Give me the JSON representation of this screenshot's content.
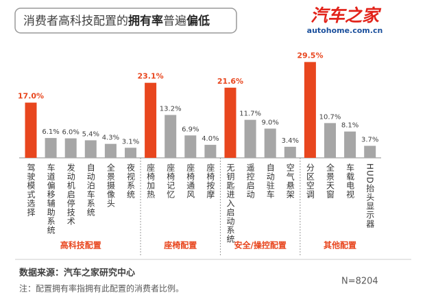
{
  "chart_data": {
    "type": "bar",
    "title": [
      {
        "text": "消费者高科技配置的",
        "bold": false
      },
      {
        "text": "拥有率",
        "bold": true
      },
      {
        "text": "普遍",
        "bold": false
      },
      {
        "text": "偏低",
        "bold": true
      }
    ],
    "logo": {
      "name": "汽车之家",
      "url": "autohome.com.cn"
    },
    "ylim": [
      0,
      30
    ],
    "groups": [
      {
        "name": "高科技配置",
        "categories": [
          "驾驶模式选择",
          "车道偏移辅助系统",
          "发动机启停技术",
          "自动泊车系统",
          "全景摄像头",
          "夜视系统"
        ],
        "values": [
          17.0,
          6.1,
          6.0,
          5.4,
          4.3,
          3.1
        ],
        "value_labels": [
          "17.0%",
          "6.1%",
          "6.0%",
          "5.4%",
          "4.3%",
          "3.1%"
        ],
        "colors": [
          "#e8461e",
          "#a6a6a6",
          "#a6a6a6",
          "#a6a6a6",
          "#a6a6a6",
          "#a6a6a6"
        ]
      },
      {
        "name": "座椅配置",
        "categories": [
          "座椅加热",
          "座椅记忆",
          "座椅通风",
          "座椅按摩"
        ],
        "values": [
          23.1,
          13.2,
          6.9,
          4.0
        ],
        "value_labels": [
          "23.1%",
          "13.2%",
          "6.9%",
          "4.0%"
        ],
        "colors": [
          "#e8461e",
          "#a6a6a6",
          "#a6a6a6",
          "#a6a6a6"
        ]
      },
      {
        "name": "安全/操控配置",
        "categories": [
          "无钥匙进入启动系统",
          "遥控启动",
          "自动驻车",
          "空气悬架"
        ],
        "values": [
          21.6,
          11.7,
          9.0,
          3.4
        ],
        "value_labels": [
          "21.6%",
          "11.7%",
          "9.0%",
          "3.4%"
        ],
        "colors": [
          "#e8461e",
          "#a6a6a6",
          "#a6a6a6",
          "#a6a6a6"
        ]
      },
      {
        "name": "其他配置",
        "categories": [
          "分区空调",
          "全景天窗",
          "车载电视",
          "HUD抬头显示器"
        ],
        "values": [
          29.5,
          10.7,
          8.1,
          3.7
        ],
        "value_labels": [
          "29.5%",
          "10.7%",
          "8.1%",
          "3.7%"
        ],
        "colors": [
          "#e8461e",
          "#a6a6a6",
          "#a6a6a6",
          "#a6a6a6"
        ]
      }
    ],
    "source": "数据来源：汽车之家研究中心",
    "note": "注：配置拥有率指拥有此配置的消费者比例。",
    "sample": "N=8204"
  }
}
